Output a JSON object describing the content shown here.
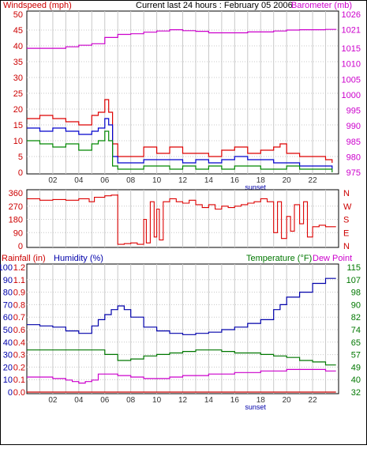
{
  "header": {
    "left": "Windspeed (mph)",
    "center": "Current last 24 hours : February 05 2006",
    "right": "Barometer (mb)"
  },
  "colors": {
    "wind_peak": "#dd0000",
    "wind_avg": "#0000cc",
    "wind_low": "#008800",
    "barometer": "#cc00cc",
    "direction": "#dd0000",
    "humidity": "#0000aa",
    "temperature": "#007700",
    "dewpoint": "#cc00cc",
    "rainfall": "#cc0000",
    "grid": "#c8c8c8"
  },
  "chart_data": [
    {
      "type": "line",
      "id": "wind",
      "ylabel_left": "Windspeed (mph)",
      "ylabel_right": "Barometer (mb)",
      "xlim": [
        0,
        24
      ],
      "ylim": [
        0,
        50
      ],
      "ylim_right": [
        975,
        1026
      ],
      "yticks": [
        0,
        5,
        10,
        15,
        20,
        25,
        30,
        35,
        40,
        45,
        50
      ],
      "yticks_right": [
        975,
        980,
        985,
        990,
        995,
        1000,
        1005,
        1010,
        1015,
        1021,
        1026
      ],
      "xtick_labels": [
        "02",
        "04",
        "06",
        "08",
        "10",
        "12",
        "14",
        "16",
        "18",
        "20",
        "22"
      ],
      "xtick_values": [
        2,
        4,
        6,
        8,
        10,
        12,
        14,
        16,
        18,
        20,
        22
      ],
      "annotation": "sunset",
      "annotation_x": 17.6,
      "grid": true,
      "series": [
        {
          "role": "wind-peak",
          "x": [
            0,
            1,
            2,
            3,
            4,
            5,
            5.5,
            6,
            6.3,
            6.6,
            7,
            8,
            9,
            10,
            11,
            12,
            13,
            14,
            15,
            16,
            17,
            18,
            19,
            19.5,
            20,
            21,
            22,
            23,
            23.5
          ],
          "y": [
            17,
            18,
            17,
            16,
            15,
            18,
            19,
            23,
            19,
            9,
            5,
            5,
            8,
            6,
            8,
            6,
            6,
            5,
            7,
            8,
            6,
            7,
            8,
            9,
            6,
            5,
            5,
            4,
            3
          ]
        },
        {
          "role": "wind-avg",
          "x": [
            0,
            1,
            2,
            3,
            4,
            5,
            5.5,
            6,
            6.3,
            6.6,
            7,
            8,
            9,
            10,
            11,
            12,
            13,
            14,
            15,
            16,
            17,
            18,
            19,
            20,
            21,
            22,
            23,
            23.5
          ],
          "y": [
            14,
            13,
            14,
            13,
            12,
            13,
            14,
            17,
            15,
            5,
            3,
            3,
            4,
            4,
            4,
            3,
            4,
            3,
            4,
            5,
            4,
            4,
            3,
            3,
            2,
            2,
            2,
            1
          ]
        },
        {
          "role": "wind-low",
          "x": [
            0,
            1,
            2,
            3,
            4,
            5,
            5.5,
            6,
            6.3,
            6.6,
            7,
            8,
            9,
            10,
            11,
            12,
            13,
            14,
            15,
            16,
            17,
            18,
            19,
            20,
            21,
            22,
            23,
            23.5
          ],
          "y": [
            10,
            9,
            8,
            9,
            7,
            9,
            10,
            13,
            10,
            2,
            1,
            1,
            2,
            2,
            1,
            2,
            1,
            2,
            1,
            2,
            2,
            1,
            1,
            2,
            1,
            1,
            1,
            0
          ]
        },
        {
          "role": "barometer",
          "axis": "right",
          "x": [
            0,
            1,
            2,
            3,
            4,
            5,
            6,
            7,
            8,
            9,
            10,
            11,
            12,
            13,
            14,
            15,
            16,
            17,
            18,
            19,
            20,
            21,
            22,
            23,
            23.8
          ],
          "y": [
            1015,
            1015,
            1015,
            1015.5,
            1016,
            1016.5,
            1018.5,
            1019.5,
            1019.7,
            1020.2,
            1020.6,
            1021,
            1020.7,
            1020.5,
            1020,
            1020,
            1020,
            1020.3,
            1020.3,
            1020.6,
            1020.9,
            1021,
            1021,
            1021.1,
            1021
          ]
        }
      ]
    },
    {
      "type": "line",
      "id": "direction",
      "ylim": [
        0,
        360
      ],
      "yticks": [
        0,
        90,
        180,
        270,
        360
      ],
      "yticks_right": [
        "N",
        "E",
        "S",
        "W",
        "N"
      ],
      "xlim": [
        0,
        24
      ],
      "grid": true,
      "series": [
        {
          "role": "wind-direction",
          "x": [
            0,
            1,
            2,
            3,
            4,
            4.8,
            5.2,
            6,
            6.5,
            7,
            7,
            7.5,
            8,
            8.5,
            9,
            9.2,
            9.5,
            9.8,
            10,
            10.2,
            10.5,
            11,
            11.5,
            12,
            12.5,
            13,
            13.5,
            14,
            14.5,
            15,
            15.5,
            16,
            16.5,
            17,
            17.5,
            18,
            18.5,
            19,
            19.3,
            19.6,
            20,
            20.3,
            20.6,
            21,
            21.3,
            21.6,
            22,
            22.5,
            23,
            23.8
          ],
          "y": [
            320,
            310,
            315,
            310,
            320,
            300,
            330,
            340,
            345,
            350,
            10,
            15,
            20,
            10,
            180,
            20,
            300,
            60,
            250,
            40,
            300,
            320,
            300,
            290,
            310,
            280,
            260,
            280,
            250,
            270,
            260,
            270,
            280,
            290,
            300,
            320,
            300,
            90,
            300,
            50,
            200,
            100,
            280,
            150,
            300,
            60,
            130,
            140,
            130,
            130
          ]
        }
      ]
    },
    {
      "type": "line",
      "id": "environment",
      "ylabel_left_1": "Rainfall (in)",
      "ylabel_left_2": "Humidity (%)",
      "ylabel_right_1": "Temperature (°F)",
      "ylabel_right_2": "Dew Point",
      "xlim": [
        0,
        24
      ],
      "ylim": [
        0,
        100
      ],
      "yticks": [
        0,
        10,
        20,
        30,
        40,
        50,
        60,
        70,
        80,
        90,
        100
      ],
      "yticks_rain": [
        "0.0",
        "0.1",
        "0.2",
        "0.3",
        "0.4",
        "0.6",
        "0.7",
        "0.8",
        "0.9",
        "1.1",
        "1.2"
      ],
      "yticks_temp": [
        "32",
        "40",
        "49",
        "57",
        "65",
        "74",
        "82",
        "90",
        "98",
        "107",
        "115"
      ],
      "ylim_temp": [
        32,
        115
      ],
      "xtick_labels": [
        "02",
        "04",
        "06",
        "08",
        "10",
        "12",
        "14",
        "16",
        "18",
        "20",
        "22"
      ],
      "xtick_values": [
        2,
        4,
        6,
        8,
        10,
        12,
        14,
        16,
        18,
        20,
        22
      ],
      "annotation": "sunset",
      "annotation_x": 17.6,
      "grid": true,
      "series": [
        {
          "role": "humidity",
          "x": [
            0,
            1,
            2,
            3,
            4,
            5,
            5.5,
            6,
            6.5,
            7,
            7.5,
            8,
            9,
            10,
            11,
            12,
            13,
            14,
            15,
            16,
            17,
            18,
            19,
            19.5,
            20,
            21,
            22,
            23,
            23.8
          ],
          "y": [
            54,
            53,
            52,
            49,
            47,
            53,
            58,
            62,
            66,
            69,
            66,
            60,
            52,
            49,
            47,
            46,
            47,
            48,
            50,
            52,
            55,
            58,
            66,
            70,
            76,
            80,
            87,
            91,
            91
          ]
        },
        {
          "role": "temperature",
          "axis": "temp",
          "x": [
            0,
            1,
            2,
            3,
            4,
            5,
            6,
            7,
            8,
            9,
            10,
            11,
            12,
            13,
            14,
            15,
            16,
            17,
            18,
            19,
            20,
            21,
            22,
            23,
            23.8
          ],
          "y": [
            60,
            60,
            60,
            60,
            60,
            60,
            57,
            53,
            54,
            56,
            57,
            58,
            59,
            60,
            60,
            59,
            58,
            58,
            57,
            56,
            55,
            53,
            52,
            50,
            50
          ]
        },
        {
          "role": "dewpoint",
          "axis": "temp",
          "x": [
            0,
            1,
            2,
            3,
            3.5,
            4,
            4.5,
            5,
            5.5,
            6,
            7,
            8,
            9,
            10,
            11,
            12,
            13,
            14,
            15,
            16,
            17,
            18,
            19,
            20,
            21,
            22,
            23,
            23.8
          ],
          "y": [
            42,
            42,
            41,
            40,
            39,
            38,
            39,
            40,
            44,
            44,
            43,
            42,
            41,
            41,
            42,
            43,
            43,
            44,
            44,
            45,
            45,
            46,
            46,
            47,
            47,
            47,
            46,
            46
          ]
        },
        {
          "role": "rainfall",
          "x": [
            0,
            23.8
          ],
          "y": [
            0,
            0
          ]
        }
      ]
    }
  ]
}
